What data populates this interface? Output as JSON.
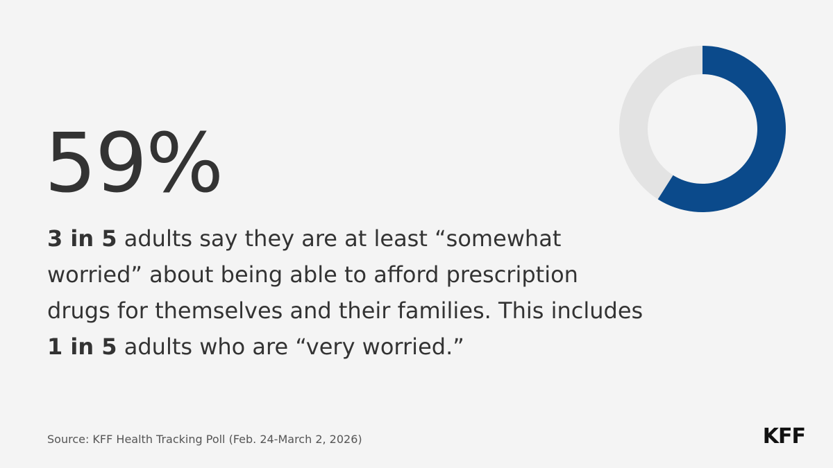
{
  "chart_data": {
    "type": "donut",
    "value_labels": [
      "59%"
    ],
    "values": [
      59
    ],
    "ylim": [
      0,
      100
    ],
    "color": "#0b4a8b",
    "track_color": "#e3e3e3",
    "description": [
      {
        "text": "3 in 5",
        "bold": true
      },
      {
        "text": " adults say they are at least “somewhat worried” about being able to afford prescription drugs for themselves and their families. This includes ",
        "bold": false
      },
      {
        "text": "1 in 5",
        "bold": true
      },
      {
        "text": " adults who are “very worried.”",
        "bold": false
      }
    ],
    "source": "Source: KFF Health Tracking Poll (Feb. 24-March 2, 2026)",
    "logo": "KFF"
  }
}
